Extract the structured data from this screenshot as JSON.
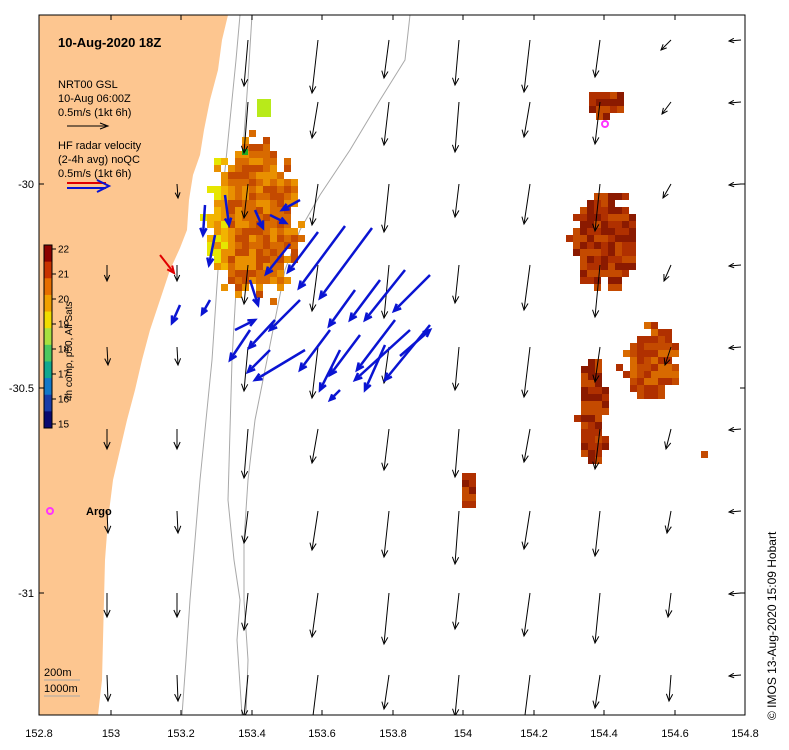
{
  "title": "10-Aug-2020 18Z",
  "colors": {
    "land": "#fdc690",
    "model_arrow": "#000000",
    "radar_arrow": "#0a14d2",
    "radar_legend_red": "#e00000",
    "argo_marker": "#ff33ff",
    "isobath": "#a8a8a8"
  },
  "axes": {
    "x_ticks": [
      "152.8",
      "153",
      "153.2",
      "153.4",
      "153.6",
      "153.8",
      "154",
      "154.2",
      "154.4",
      "154.6",
      "154.8"
    ],
    "y_ticks": [
      "-30",
      "-30.5",
      "-31"
    ]
  },
  "legend": {
    "model_line1": "NRT00 GSL",
    "model_line2": "10-Aug 06:00Z",
    "model_line3": "0.5m/s (1kt 6h)",
    "radar_line1": "HF radar velocity",
    "radar_line2": "(2-4h avg) noQC",
    "radar_line3": "0.5m/s (1kt 6h)"
  },
  "colorbar": {
    "label": "4h comp, p50, All Sats",
    "ticks": [
      "22",
      "21",
      "20",
      "19",
      "18",
      "17",
      "16",
      "15"
    ]
  },
  "argo_label": "Argo",
  "isobath_labels": [
    "200m",
    "1000m"
  ],
  "credit": "© IMOS 13-Aug-2020 15:09 Hobart"
}
